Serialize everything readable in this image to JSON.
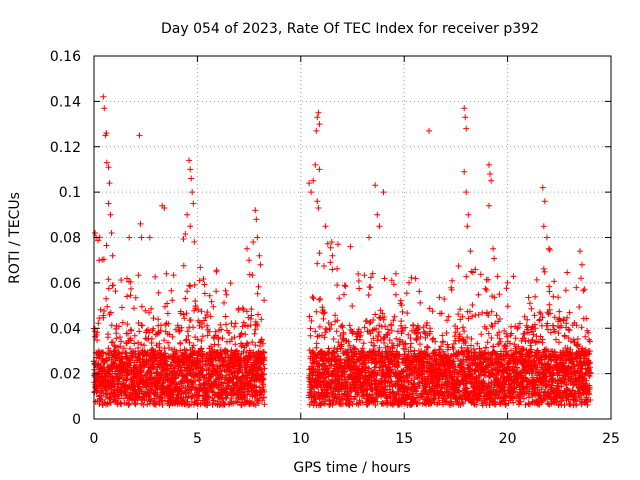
{
  "chart_data": {
    "type": "scatter",
    "title": "Day 054 of 2023, Rate Of TEC Index for receiver p392",
    "xlabel": "GPS time / hours",
    "ylabel": "ROTI / TECUs",
    "xlim": [
      0,
      25
    ],
    "ylim": [
      0,
      0.16
    ],
    "xticks": [
      0,
      5,
      10,
      15,
      20,
      25
    ],
    "xtick_labels": [
      "0",
      "5",
      "10",
      "15",
      "20",
      "25"
    ],
    "yticks": [
      0,
      0.02,
      0.04,
      0.06,
      0.08,
      0.1,
      0.12,
      0.14,
      0.16
    ],
    "ytick_labels": [
      "0",
      "0.02",
      "0.04",
      "0.06",
      "0.08",
      "0.1",
      "0.12",
      "0.14",
      "0.16"
    ],
    "grid": true,
    "marker": "+",
    "color": "#ff0000",
    "data_coverage_hours": [
      [
        0,
        8.25
      ],
      [
        10.4,
        24
      ]
    ],
    "envelope": {
      "x": [
        0,
        0.5,
        1,
        2,
        3,
        4,
        4.6,
        5,
        6,
        7,
        8,
        8.2,
        10.5,
        11,
        12,
        13,
        14,
        15,
        16,
        17,
        18,
        19,
        20,
        21,
        22,
        23,
        24
      ],
      "y_high": [
        0.06,
        0.07,
        0.05,
        0.05,
        0.05,
        0.05,
        0.08,
        0.06,
        0.05,
        0.05,
        0.06,
        0.045,
        0.07,
        0.07,
        0.05,
        0.05,
        0.06,
        0.05,
        0.05,
        0.04,
        0.06,
        0.06,
        0.05,
        0.045,
        0.06,
        0.05,
        0.05
      ]
    },
    "points": [
      [
        0.05,
        0.082
      ],
      [
        0.1,
        0.08
      ],
      [
        0.25,
        0.07
      ],
      [
        0.45,
        0.142
      ],
      [
        0.5,
        0.137
      ],
      [
        0.55,
        0.125
      ],
      [
        0.6,
        0.126
      ],
      [
        0.62,
        0.113
      ],
      [
        0.7,
        0.111
      ],
      [
        0.75,
        0.104
      ],
      [
        0.7,
        0.095
      ],
      [
        0.8,
        0.09
      ],
      [
        0.85,
        0.082
      ],
      [
        0.9,
        0.072
      ],
      [
        1.7,
        0.08
      ],
      [
        2.2,
        0.125
      ],
      [
        2.25,
        0.086
      ],
      [
        2.3,
        0.08
      ],
      [
        2.7,
        0.08
      ],
      [
        3.3,
        0.094
      ],
      [
        3.4,
        0.093
      ],
      [
        3.5,
        0.064
      ],
      [
        4.5,
        0.09
      ],
      [
        4.6,
        0.114
      ],
      [
        4.65,
        0.11
      ],
      [
        4.7,
        0.106
      ],
      [
        4.75,
        0.1
      ],
      [
        4.8,
        0.095
      ],
      [
        4.65,
        0.085
      ],
      [
        7.4,
        0.075
      ],
      [
        7.5,
        0.07
      ],
      [
        7.7,
        0.078
      ],
      [
        7.8,
        0.092
      ],
      [
        7.85,
        0.088
      ],
      [
        7.9,
        0.08
      ],
      [
        8.0,
        0.072
      ],
      [
        8.05,
        0.068
      ],
      [
        10.4,
        0.104
      ],
      [
        10.5,
        0.1
      ],
      [
        10.6,
        0.105
      ],
      [
        10.7,
        0.112
      ],
      [
        10.75,
        0.127
      ],
      [
        10.8,
        0.133
      ],
      [
        10.85,
        0.135
      ],
      [
        10.9,
        0.13
      ],
      [
        10.8,
        0.096
      ],
      [
        10.85,
        0.093
      ],
      [
        10.9,
        0.11
      ],
      [
        11.2,
        0.085
      ],
      [
        11.5,
        0.078
      ],
      [
        11.8,
        0.077
      ],
      [
        12.4,
        0.076
      ],
      [
        13.3,
        0.08
      ],
      [
        13.6,
        0.103
      ],
      [
        13.7,
        0.09
      ],
      [
        13.8,
        0.085
      ],
      [
        14.0,
        0.1
      ],
      [
        14.6,
        0.064
      ],
      [
        16.2,
        0.127
      ],
      [
        17.9,
        0.137
      ],
      [
        17.95,
        0.133
      ],
      [
        18.0,
        0.128
      ],
      [
        17.9,
        0.109
      ],
      [
        18.0,
        0.1
      ],
      [
        18.1,
        0.09
      ],
      [
        18.05,
        0.085
      ],
      [
        18.2,
        0.074
      ],
      [
        19.1,
        0.112
      ],
      [
        19.15,
        0.108
      ],
      [
        19.2,
        0.105
      ],
      [
        19.1,
        0.094
      ],
      [
        19.3,
        0.075
      ],
      [
        21.7,
        0.102
      ],
      [
        21.8,
        0.096
      ],
      [
        21.75,
        0.085
      ],
      [
        21.9,
        0.08
      ],
      [
        22.0,
        0.075
      ],
      [
        23.5,
        0.074
      ],
      [
        23.6,
        0.068
      ],
      [
        23.55,
        0.062
      ]
    ]
  }
}
